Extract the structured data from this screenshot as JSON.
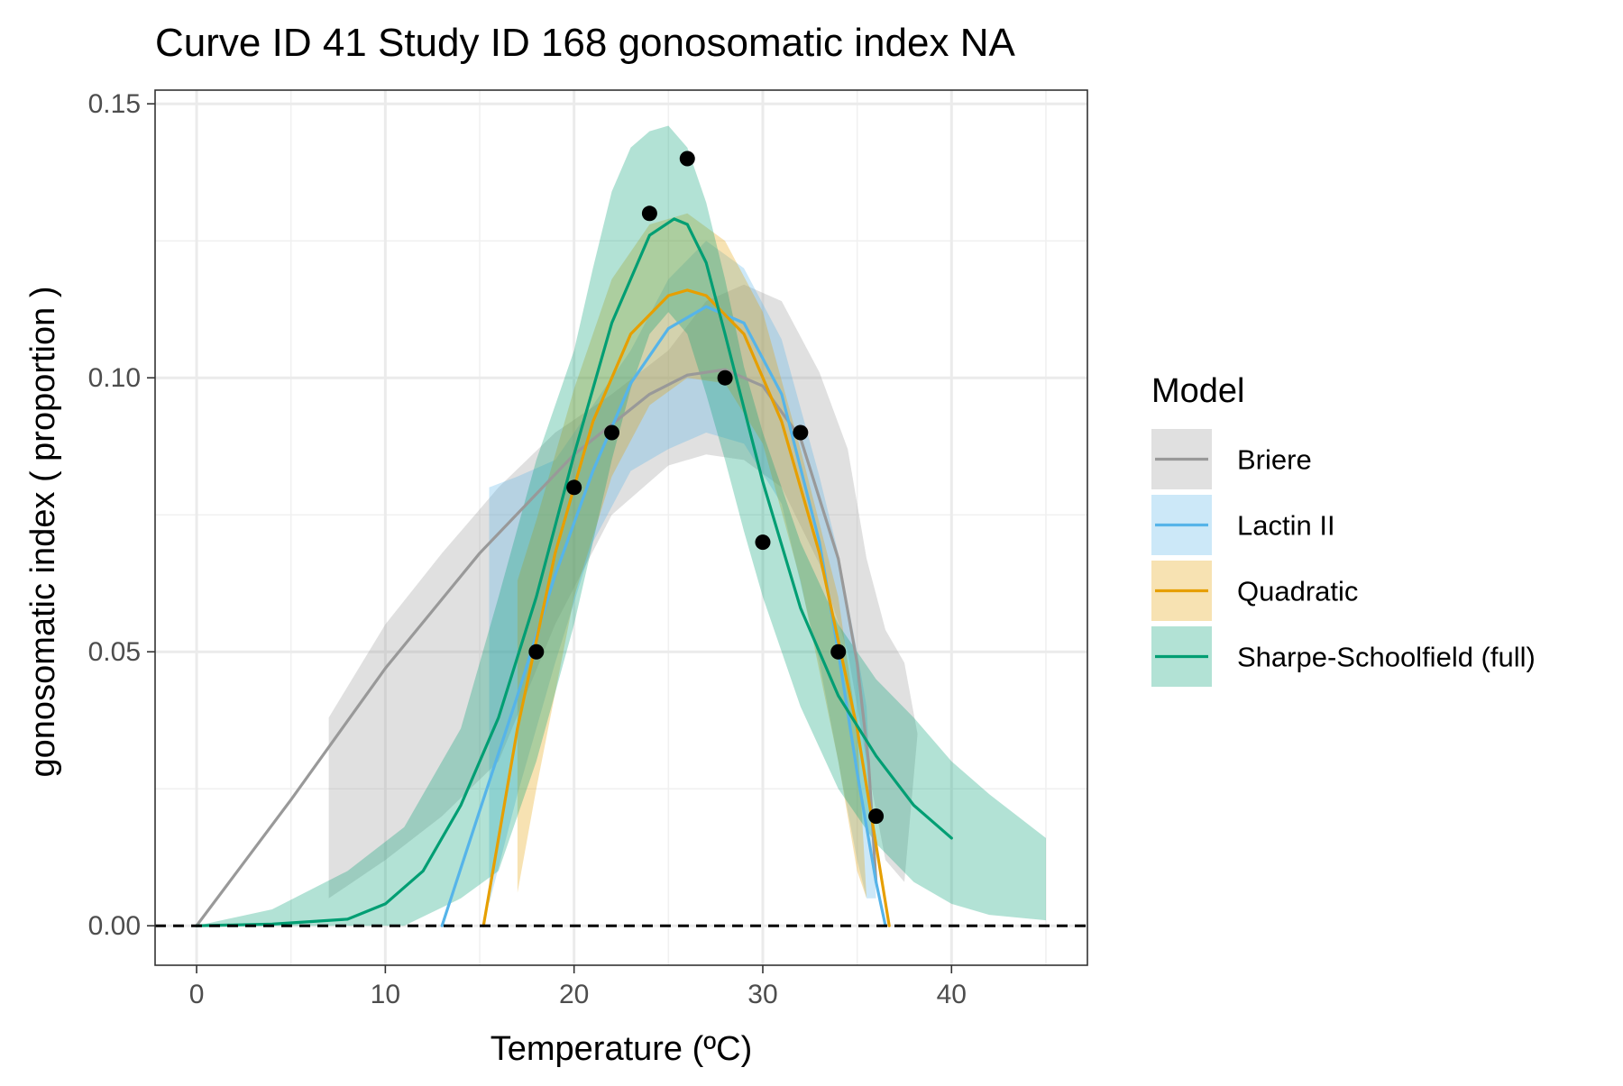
{
  "chart_data": {
    "type": "line",
    "title": "Curve ID 41 Study ID 168 gonosomatic index NA",
    "xlabel": "Temperature (ºC)",
    "ylabel": "gonosomatic index ( proportion )",
    "xlim": [
      -2.2,
      47.2
    ],
    "ylim": [
      -0.0072,
      0.1525
    ],
    "x_ticks": [
      0,
      10,
      20,
      30,
      40
    ],
    "x_tick_labels": [
      "0",
      "10",
      "20",
      "30",
      "40"
    ],
    "y_ticks": [
      0,
      0.05,
      0.1,
      0.15
    ],
    "y_tick_labels": [
      "0.00",
      "0.05",
      "0.10",
      "0.15"
    ],
    "grid": true,
    "reference_line": {
      "y": 0,
      "style": "dashed"
    },
    "legend": {
      "title": "Model",
      "position": "right"
    },
    "observations": {
      "x": [
        18,
        20,
        22,
        24,
        26,
        28,
        30,
        32,
        34,
        36
      ],
      "y": [
        0.05,
        0.08,
        0.09,
        0.13,
        0.14,
        0.1,
        0.07,
        0.09,
        0.05,
        0.02
      ]
    },
    "series": [
      {
        "name": "Briere",
        "color": "#999999",
        "x": [
          0,
          5,
          10,
          15,
          20,
          24,
          26,
          28,
          30,
          32,
          34,
          35,
          35.6,
          36
        ],
        "y": [
          0,
          0.023,
          0.047,
          0.068,
          0.086,
          0.097,
          0.1005,
          0.1015,
          0.0985,
          0.089,
          0.067,
          0.048,
          0.03,
          0.008
        ],
        "band_x": [
          7,
          10,
          13,
          16,
          19,
          22,
          25,
          27,
          29,
          31,
          33,
          34.5,
          35.5,
          36.5,
          37.5,
          38.2
        ],
        "band_lower": [
          0.005,
          0.012,
          0.02,
          0.03,
          0.055,
          0.075,
          0.084,
          0.086,
          0.085,
          0.08,
          0.066,
          0.05,
          0.03,
          0.012,
          0.008,
          0.035
        ],
        "band_upper": [
          0.038,
          0.055,
          0.068,
          0.08,
          0.09,
          0.097,
          0.105,
          0.114,
          0.117,
          0.114,
          0.101,
          0.087,
          0.067,
          0.054,
          0.048,
          0.035
        ]
      },
      {
        "name": "Lactin II",
        "color": "#56B4E9",
        "x": [
          13,
          15,
          17,
          19,
          21,
          23,
          25,
          27,
          29,
          31,
          33,
          34,
          35,
          36,
          36.5
        ],
        "y": [
          0,
          0.021,
          0.042,
          0.064,
          0.083,
          0.099,
          0.109,
          0.113,
          0.11,
          0.097,
          0.07,
          0.05,
          0.028,
          0.008,
          0
        ],
        "band_x": [
          15.5,
          17,
          19,
          21,
          23,
          25,
          27,
          29,
          31,
          33,
          34,
          35,
          35.5,
          36
        ],
        "band_lower": [
          0.004,
          0.024,
          0.048,
          0.07,
          0.083,
          0.087,
          0.09,
          0.088,
          0.077,
          0.048,
          0.03,
          0.012,
          0.005,
          0.005
        ],
        "band_upper": [
          0.08,
          0.082,
          0.085,
          0.095,
          0.105,
          0.118,
          0.125,
          0.12,
          0.107,
          0.082,
          0.068,
          0.05,
          0.04,
          0.005
        ]
      },
      {
        "name": "Quadratic",
        "color": "#E69F00",
        "x": [
          15.2,
          17,
          19,
          21,
          23,
          25,
          26,
          27,
          29,
          31,
          33,
          35,
          36.7
        ],
        "y": [
          0,
          0.036,
          0.068,
          0.092,
          0.108,
          0.115,
          0.116,
          0.115,
          0.108,
          0.092,
          0.068,
          0.036,
          0
        ],
        "band_x": [
          17,
          18,
          20,
          22,
          24,
          26,
          28,
          30,
          32,
          34,
          35,
          35.5
        ],
        "band_lower": [
          0.006,
          0.025,
          0.06,
          0.082,
          0.095,
          0.1,
          0.099,
          0.088,
          0.063,
          0.03,
          0.01,
          0.005
        ],
        "band_upper": [
          0.063,
          0.074,
          0.098,
          0.118,
          0.128,
          0.13,
          0.125,
          0.112,
          0.087,
          0.06,
          0.036,
          0.005
        ]
      },
      {
        "name": "Sharpe-Schoolfield (full)",
        "color": "#009E73",
        "x": [
          0,
          4,
          8,
          10,
          12,
          14,
          16,
          18,
          20,
          22,
          24,
          25.3,
          26,
          27,
          28,
          30,
          32,
          34,
          36,
          38,
          40
        ],
        "y": [
          0,
          0.0003,
          0.0012,
          0.004,
          0.01,
          0.022,
          0.038,
          0.06,
          0.086,
          0.11,
          0.126,
          0.129,
          0.128,
          0.121,
          0.108,
          0.081,
          0.058,
          0.042,
          0.031,
          0.022,
          0.016
        ],
        "band_x": [
          0,
          4,
          8,
          11,
          14,
          16,
          18,
          20,
          21,
          22,
          23,
          24,
          25,
          26,
          27,
          28,
          29,
          30,
          32,
          34,
          36,
          38,
          40,
          42,
          45
        ],
        "band_lower": [
          0,
          0,
          0,
          0,
          0.005,
          0.01,
          0.03,
          0.055,
          0.07,
          0.085,
          0.098,
          0.108,
          0.112,
          0.108,
          0.097,
          0.085,
          0.072,
          0.06,
          0.04,
          0.025,
          0.015,
          0.008,
          0.004,
          0.002,
          0.001
        ],
        "band_upper": [
          0,
          0.003,
          0.01,
          0.018,
          0.036,
          0.06,
          0.085,
          0.105,
          0.12,
          0.134,
          0.142,
          0.145,
          0.146,
          0.142,
          0.132,
          0.118,
          0.102,
          0.09,
          0.07,
          0.055,
          0.045,
          0.038,
          0.03,
          0.024,
          0.016
        ]
      }
    ]
  }
}
